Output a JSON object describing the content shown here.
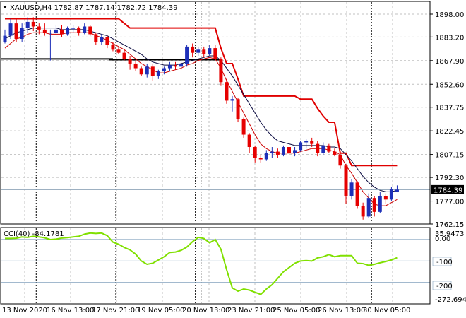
{
  "header": {
    "symbol_line": "XAUUSD,H4  1782.87 1787.14 1782.72 1784.39"
  },
  "price_axis": {
    "labels": [
      "1898.00",
      "1883.20",
      "1867.90",
      "1852.60",
      "1837.75",
      "1822.45",
      "1807.15",
      "1792.30",
      "1777.00",
      "1762.15"
    ],
    "current_price": "1784.39"
  },
  "cci_panel": {
    "title": "CCI(40) -84.1781",
    "axis_labels": {
      "max": "35.9473",
      "zero": "0.00",
      "minus100": "-100",
      "minus200": "-200",
      "min": "-272.694"
    }
  },
  "time_axis": {
    "labels": [
      "13 Nov 2020",
      "16 Nov 13:00",
      "17 Nov 21:00",
      "19 Nov 05:00",
      "20 Nov 13:00",
      "23 Nov 21:00",
      "25 Nov 05:00",
      "26 Nov 13:00",
      "30 Nov 05:00"
    ]
  },
  "colors": {
    "bull": "#1d2fb8",
    "bear": "#e60000",
    "fast_ma": "#cc0000",
    "slow_ma": "#0a0a40",
    "step_line": "#e00000",
    "support": "#000000",
    "cci": "#80e000",
    "level_line": "#6a8fb0",
    "grid": "#c0c0c0"
  },
  "chart_data": [
    {
      "type": "candlestick",
      "title": "XAUUSD,H4",
      "ylim": [
        1762.15,
        1898.0
      ],
      "candles_ohlc": [
        [
          1880,
          1888,
          1879,
          1884
        ],
        [
          1884,
          1895,
          1882,
          1892
        ],
        [
          1892,
          1895,
          1880,
          1882
        ],
        [
          1882,
          1892,
          1880,
          1889
        ],
        [
          1889,
          1896,
          1886,
          1893
        ],
        [
          1893,
          1896,
          1887,
          1890
        ],
        [
          1890,
          1892,
          1885,
          1888
        ],
        [
          1888,
          1892,
          1884,
          1886
        ],
        [
          1886,
          1888,
          1868,
          1886
        ],
        [
          1886,
          1891,
          1885,
          1888
        ],
        [
          1888,
          1891,
          1883,
          1885
        ],
        [
          1885,
          1890,
          1884,
          1889
        ],
        [
          1889,
          1891,
          1886,
          1889
        ],
        [
          1889,
          1890,
          1884,
          1886
        ],
        [
          1886,
          1892,
          1885,
          1890
        ],
        [
          1890,
          1891,
          1884,
          1885
        ],
        [
          1885,
          1886,
          1878,
          1880
        ],
        [
          1880,
          1885,
          1878,
          1883
        ],
        [
          1883,
          1884,
          1876,
          1878
        ],
        [
          1878,
          1880,
          1874,
          1875
        ],
        [
          1875,
          1877,
          1872,
          1873
        ],
        [
          1873,
          1875,
          1868,
          1869
        ],
        [
          1869,
          1871,
          1862,
          1866
        ],
        [
          1866,
          1868,
          1861,
          1863
        ],
        [
          1863,
          1864,
          1858,
          1859
        ],
        [
          1859,
          1866,
          1857,
          1864
        ],
        [
          1864,
          1866,
          1855,
          1858
        ],
        [
          1858,
          1862,
          1856,
          1861
        ],
        [
          1861,
          1864,
          1859,
          1863
        ],
        [
          1863,
          1867,
          1861,
          1865
        ],
        [
          1865,
          1867,
          1862,
          1864
        ],
        [
          1864,
          1869,
          1862,
          1866
        ],
        [
          1866,
          1878,
          1864,
          1877
        ],
        [
          1877,
          1879,
          1870,
          1873
        ],
        [
          1873,
          1877,
          1871,
          1875
        ],
        [
          1875,
          1877,
          1870,
          1872
        ],
        [
          1872,
          1878,
          1871,
          1876
        ],
        [
          1876,
          1878,
          1868,
          1869
        ],
        [
          1869,
          1870,
          1852,
          1854
        ],
        [
          1854,
          1856,
          1840,
          1842
        ],
        [
          1842,
          1845,
          1835,
          1843
        ],
        [
          1843,
          1844,
          1828,
          1830
        ],
        [
          1830,
          1831,
          1818,
          1820
        ],
        [
          1820,
          1821,
          1808,
          1812
        ],
        [
          1812,
          1813,
          1802,
          1805
        ],
        [
          1805,
          1807,
          1802,
          1804
        ],
        [
          1804,
          1810,
          1803,
          1808
        ],
        [
          1808,
          1812,
          1805,
          1809
        ],
        [
          1809,
          1811,
          1805,
          1807
        ],
        [
          1807,
          1813,
          1806,
          1812
        ],
        [
          1812,
          1814,
          1806,
          1808
        ],
        [
          1808,
          1812,
          1806,
          1810
        ],
        [
          1810,
          1816,
          1809,
          1815
        ],
        [
          1815,
          1817,
          1811,
          1816
        ],
        [
          1816,
          1818,
          1812,
          1814
        ],
        [
          1814,
          1816,
          1806,
          1808
        ],
        [
          1808,
          1815,
          1807,
          1813
        ],
        [
          1813,
          1814,
          1808,
          1809
        ],
        [
          1809,
          1811,
          1806,
          1807
        ],
        [
          1807,
          1808,
          1798,
          1800
        ],
        [
          1800,
          1801,
          1775,
          1780
        ],
        [
          1780,
          1791,
          1778,
          1789
        ],
        [
          1789,
          1790,
          1772,
          1774
        ],
        [
          1774,
          1776,
          1765,
          1767
        ],
        [
          1767,
          1782,
          1766,
          1779
        ],
        [
          1779,
          1780,
          1767,
          1770
        ],
        [
          1770,
          1783,
          1769,
          1780
        ],
        [
          1780,
          1782,
          1775,
          1778
        ],
        [
          1778,
          1786,
          1777,
          1785
        ],
        [
          1782.87,
          1787.14,
          1782.72,
          1784.39
        ]
      ],
      "fast_ma": [
        1876,
        1879,
        1882,
        1883,
        1885,
        1886,
        1886,
        1886,
        1885,
        1885,
        1885,
        1886,
        1886,
        1886,
        1886,
        1886,
        1884,
        1883,
        1881,
        1879,
        1877,
        1875,
        1872,
        1869,
        1866,
        1864,
        1862,
        1860,
        1860,
        1861,
        1862,
        1863,
        1865,
        1866,
        1868,
        1869,
        1870,
        1869,
        1863,
        1855,
        1848,
        1841,
        1834,
        1827,
        1820,
        1814,
        1811,
        1809,
        1808,
        1808,
        1808,
        1808,
        1809,
        1810,
        1811,
        1811,
        1811,
        1810,
        1809,
        1807,
        1800,
        1795,
        1789,
        1783,
        1779,
        1775,
        1774,
        1774,
        1776,
        1778
      ],
      "slow_ma": [
        1882,
        1884,
        1886,
        1887,
        1888,
        1889,
        1889,
        1889,
        1889,
        1889,
        1888,
        1888,
        1888,
        1888,
        1888,
        1887,
        1886,
        1885,
        1884,
        1882,
        1880,
        1878,
        1876,
        1874,
        1872,
        1869,
        1867,
        1866,
        1865,
        1865,
        1865,
        1866,
        1867,
        1868,
        1869,
        1870,
        1871,
        1871,
        1868,
        1863,
        1858,
        1852,
        1846,
        1840,
        1834,
        1828,
        1823,
        1819,
        1816,
        1815,
        1814,
        1813,
        1813,
        1813,
        1813,
        1813,
        1813,
        1812,
        1812,
        1811,
        1807,
        1803,
        1798,
        1793,
        1789,
        1786,
        1784,
        1783,
        1783,
        1784
      ],
      "step_line": [
        1895,
        1895,
        1895,
        1895,
        1895,
        1895,
        1895,
        1895,
        1895,
        1895,
        1895,
        1895,
        1895,
        1895,
        1895,
        1895,
        1895,
        1895,
        1895,
        1895,
        1895,
        1892,
        1889,
        1889,
        1889,
        1889,
        1889,
        1889,
        1889,
        1889,
        1889,
        1889,
        1889,
        1889,
        1889,
        1889,
        1889,
        1889,
        1876,
        1866,
        1866,
        1856,
        1845,
        1845,
        1845,
        1845,
        1845,
        1845,
        1845,
        1845,
        1845,
        1845,
        1843,
        1843,
        1843,
        1837,
        1832,
        1828,
        1828,
        1808,
        1808,
        1800,
        1800,
        1800,
        1800,
        1800,
        1800,
        1800,
        1800,
        1800
      ],
      "support_segments": [
        {
          "from": 0,
          "to": 19,
          "value": 1869
        },
        {
          "from": 19,
          "to": 38,
          "value": 1868.5
        }
      ],
      "marker_candles": [
        5,
        19,
        33,
        34,
        64
      ]
    },
    {
      "type": "line",
      "title": "CCI(40)",
      "ylim": [
        -272.694,
        35.9473
      ],
      "levels": [
        0,
        -100,
        -200
      ],
      "values": [
        5,
        5,
        6,
        12,
        10,
        15,
        12,
        8,
        0,
        2,
        7,
        9,
        12,
        15,
        25,
        30,
        28,
        30,
        18,
        -12,
        -22,
        -37,
        -48,
        -68,
        -100,
        -115,
        -110,
        -95,
        -80,
        -60,
        -58,
        -50,
        -35,
        -10,
        10,
        5,
        -15,
        0,
        -45,
        -140,
        -225,
        -240,
        -230,
        -235,
        -245,
        -255,
        -230,
        -210,
        -180,
        -150,
        -130,
        -110,
        -100,
        -98,
        -100,
        -85,
        -80,
        -70,
        -80,
        -75,
        -75,
        -75,
        -110,
        -112,
        -120,
        -115,
        -108,
        -102,
        -95,
        -84
      ]
    }
  ]
}
